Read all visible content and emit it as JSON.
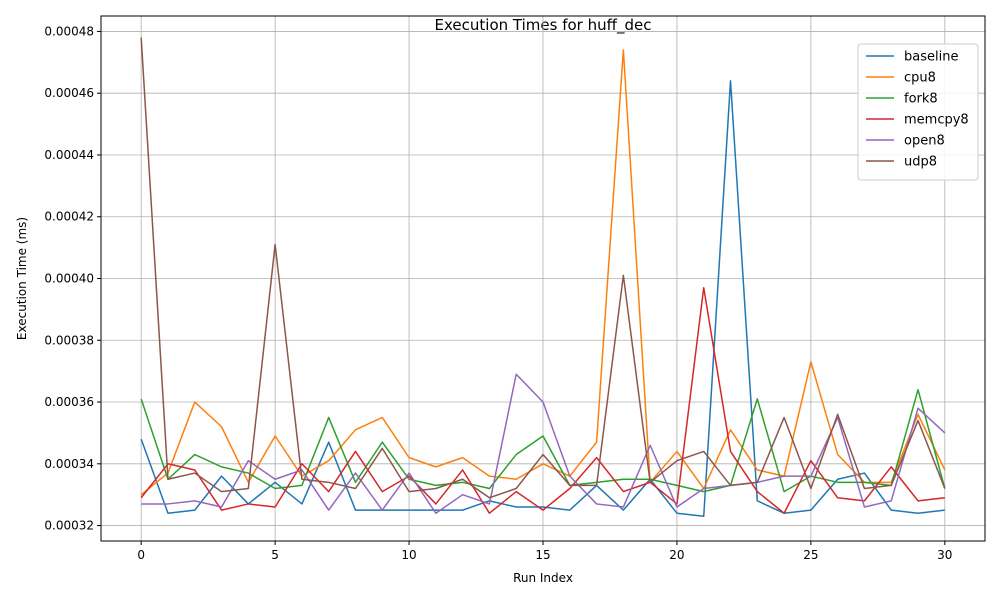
{
  "chart_data": {
    "type": "line",
    "title": "Execution Times for huff_dec",
    "xlabel": "Run Index",
    "ylabel": "Execution Time (ms)",
    "xlim": [
      -1.5,
      31.5
    ],
    "ylim": [
      0.000315,
      0.000485
    ],
    "x_ticks": [
      0,
      5,
      10,
      15,
      20,
      25,
      30
    ],
    "x_tick_labels": [
      "0",
      "5",
      "10",
      "15",
      "20",
      "25",
      "30"
    ],
    "y_ticks": [
      0.00032,
      0.00034,
      0.00036,
      0.00038,
      0.0004,
      0.00042,
      0.00044,
      0.00046,
      0.00048
    ],
    "y_tick_labels": [
      "0.00032",
      "0.00034",
      "0.00036",
      "0.00038",
      "0.00040",
      "0.00042",
      "0.00044",
      "0.00046",
      "0.00048"
    ],
    "grid": true,
    "legend_position": "top-right",
    "x": [
      0,
      1,
      2,
      3,
      4,
      5,
      6,
      7,
      8,
      9,
      10,
      11,
      12,
      13,
      14,
      15,
      16,
      17,
      18,
      19,
      20,
      21,
      22,
      23,
      24,
      25,
      26,
      27,
      28,
      29,
      30
    ],
    "series": [
      {
        "name": "baseline",
        "color": "#1f77b4",
        "values": [
          0.000348,
          0.000324,
          0.000325,
          0.000336,
          0.000327,
          0.000334,
          0.000327,
          0.000347,
          0.000325,
          0.000325,
          0.000325,
          0.000325,
          0.000325,
          0.000328,
          0.000326,
          0.000326,
          0.000325,
          0.000333,
          0.000325,
          0.000335,
          0.000324,
          0.000323,
          0.000464,
          0.000328,
          0.000324,
          0.000325,
          0.000335,
          0.000337,
          0.000325,
          0.000324,
          0.000325
        ]
      },
      {
        "name": "cpu8",
        "color": "#ff7f0e",
        "values": [
          0.00033,
          0.000337,
          0.00036,
          0.000352,
          0.000334,
          0.000349,
          0.000336,
          0.000341,
          0.000351,
          0.000355,
          0.000342,
          0.000339,
          0.000342,
          0.000336,
          0.000335,
          0.00034,
          0.000336,
          0.000347,
          0.000474,
          0.000334,
          0.000344,
          0.000332,
          0.000351,
          0.000338,
          0.000336,
          0.000373,
          0.000343,
          0.000334,
          0.000334,
          0.000356,
          0.000338
        ]
      },
      {
        "name": "fork8",
        "color": "#2ca02c",
        "values": [
          0.000361,
          0.000335,
          0.000343,
          0.000339,
          0.000337,
          0.000332,
          0.000333,
          0.000355,
          0.000334,
          0.000347,
          0.000335,
          0.000333,
          0.000334,
          0.000332,
          0.000343,
          0.000349,
          0.000333,
          0.000334,
          0.000335,
          0.000335,
          0.000333,
          0.000331,
          0.000333,
          0.000361,
          0.000331,
          0.000336,
          0.000334,
          0.000334,
          0.000333,
          0.000364,
          0.000332
        ]
      },
      {
        "name": "memcpy8",
        "color": "#d62728",
        "values": [
          0.000329,
          0.00034,
          0.000338,
          0.000325,
          0.000327,
          0.000326,
          0.00034,
          0.000331,
          0.000344,
          0.000331,
          0.000336,
          0.000327,
          0.000338,
          0.000324,
          0.000331,
          0.000325,
          0.000332,
          0.000342,
          0.000331,
          0.000334,
          0.000327,
          0.000397,
          0.000344,
          0.000331,
          0.000324,
          0.000341,
          0.000329,
          0.000328,
          0.000339,
          0.000328,
          0.000329
        ]
      },
      {
        "name": "open8",
        "color": "#9467bd",
        "values": [
          0.000327,
          0.000327,
          0.000328,
          0.000326,
          0.000341,
          0.000335,
          0.000338,
          0.000325,
          0.000337,
          0.000325,
          0.000337,
          0.000324,
          0.00033,
          0.000327,
          0.000369,
          0.00036,
          0.000336,
          0.000327,
          0.000326,
          0.000346,
          0.000326,
          0.000332,
          0.000333,
          0.000334,
          0.000336,
          0.000336,
          0.000355,
          0.000326,
          0.000328,
          0.000358,
          0.00035
        ]
      },
      {
        "name": "udp8",
        "color": "#8c564b",
        "values": [
          0.000478,
          0.000335,
          0.000337,
          0.000331,
          0.000332,
          0.000411,
          0.000335,
          0.000334,
          0.000332,
          0.000345,
          0.000331,
          0.000332,
          0.000335,
          0.000329,
          0.000332,
          0.000343,
          0.000333,
          0.000333,
          0.000401,
          0.000334,
          0.000341,
          0.000344,
          0.000333,
          0.000334,
          0.000355,
          0.000332,
          0.000356,
          0.000332,
          0.000333,
          0.000354,
          0.000332
        ]
      }
    ]
  }
}
